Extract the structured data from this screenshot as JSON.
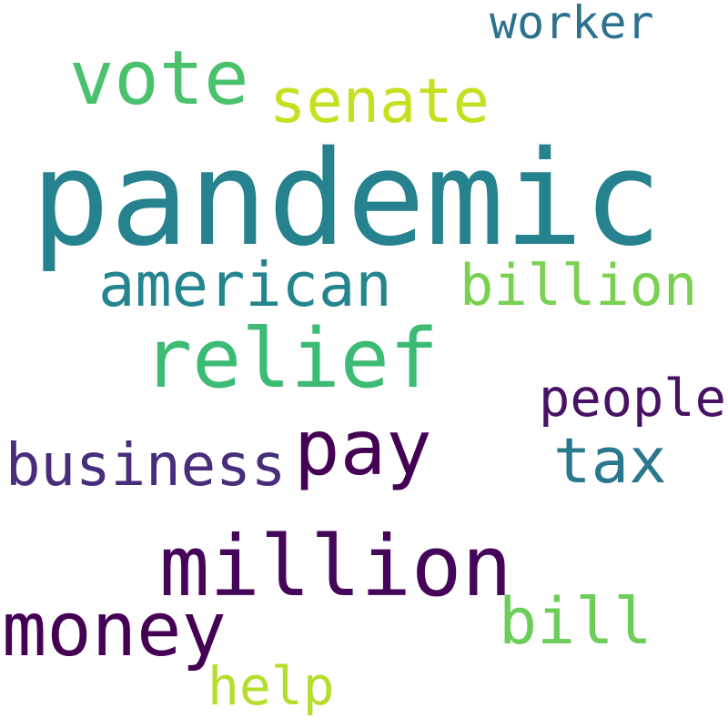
{
  "words": {
    "pandemic": {
      "text": "pandemic",
      "color": "#26828e"
    },
    "vote": {
      "text": "vote",
      "color": "#4ac16d"
    },
    "senate": {
      "text": "senate",
      "color": "#c6e021"
    },
    "worker": {
      "text": "worker",
      "color": "#2c728e"
    },
    "american": {
      "text": "american",
      "color": "#25858e"
    },
    "billion": {
      "text": "billion",
      "color": "#7ad151"
    },
    "relief": {
      "text": "relief",
      "color": "#3cbb75"
    },
    "people": {
      "text": "people",
      "color": "#471164"
    },
    "business": {
      "text": "business",
      "color": "#472d7b"
    },
    "pay": {
      "text": "pay",
      "color": "#440154"
    },
    "tax": {
      "text": "tax",
      "color": "#2a788e"
    },
    "million": {
      "text": "million",
      "color": "#450559"
    },
    "money": {
      "text": "money",
      "color": "#440154"
    },
    "bill": {
      "text": "bill",
      "color": "#6ccd5a"
    },
    "help": {
      "text": "help",
      "color": "#b5de2b"
    }
  }
}
